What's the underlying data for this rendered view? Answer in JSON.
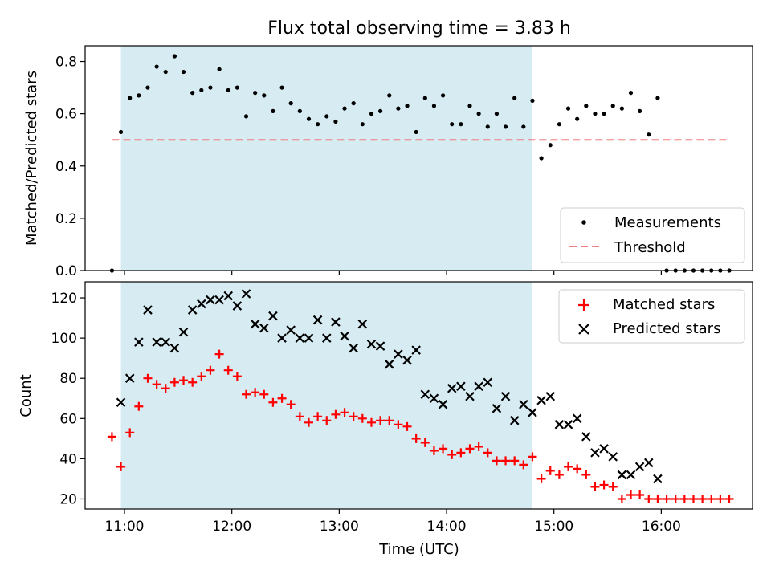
{
  "chart_data": [
    {
      "type": "scatter",
      "title": "Flux total observing time = 3.83 h",
      "xlabel": "",
      "ylabel": "Matched/Predicted stars",
      "ylim": [
        0,
        0.86
      ],
      "yticks": [
        0.0,
        0.2,
        0.4,
        0.6,
        0.8
      ],
      "ytick_labels": [
        "0.0",
        "0.2",
        "0.4",
        "0.6",
        "0.8"
      ],
      "shaded_interval": [
        "10:58",
        "14:48"
      ],
      "threshold": 0.5,
      "legend_position": "lower-right",
      "legend": [
        {
          "label": "Measurements",
          "color": "#000000",
          "marker": "dot"
        },
        {
          "label": "Threshold",
          "color": "#f08080",
          "marker": "dashed-line"
        }
      ],
      "series": [
        {
          "name": "Measurements",
          "color": "#000000",
          "x": [
            "10:53",
            "10:58",
            "11:03",
            "11:08",
            "11:13",
            "11:18",
            "11:23",
            "11:28",
            "11:33",
            "11:38",
            "11:43",
            "11:48",
            "11:53",
            "11:58",
            "12:03",
            "12:08",
            "12:13",
            "12:18",
            "12:23",
            "12:28",
            "12:33",
            "12:38",
            "12:43",
            "12:48",
            "12:53",
            "12:58",
            "13:03",
            "13:08",
            "13:13",
            "13:18",
            "13:23",
            "13:28",
            "13:33",
            "13:38",
            "13:43",
            "13:48",
            "13:53",
            "13:58",
            "14:03",
            "14:08",
            "14:13",
            "14:18",
            "14:23",
            "14:28",
            "14:33",
            "14:38",
            "14:43",
            "14:48",
            "14:53",
            "14:58",
            "15:03",
            "15:08",
            "15:13",
            "15:18",
            "15:23",
            "15:28",
            "15:33",
            "15:38",
            "15:43",
            "15:48",
            "15:53",
            "15:58",
            "16:03",
            "16:08",
            "16:13",
            "16:18",
            "16:23",
            "16:28",
            "16:33",
            "16:38"
          ],
          "y": [
            0.0,
            0.53,
            0.66,
            0.67,
            0.7,
            0.78,
            0.76,
            0.82,
            0.76,
            0.68,
            0.69,
            0.7,
            0.77,
            0.69,
            0.7,
            0.59,
            0.68,
            0.67,
            0.61,
            0.7,
            0.64,
            0.61,
            0.58,
            0.56,
            0.59,
            0.57,
            0.62,
            0.64,
            0.56,
            0.6,
            0.61,
            0.67,
            0.62,
            0.63,
            0.53,
            0.66,
            0.63,
            0.67,
            0.56,
            0.56,
            0.63,
            0.6,
            0.55,
            0.6,
            0.55,
            0.66,
            0.55,
            0.65,
            0.43,
            0.48,
            0.56,
            0.62,
            0.58,
            0.63,
            0.6,
            0.6,
            0.63,
            0.62,
            0.68,
            0.61,
            0.52,
            0.66,
            0.0,
            0.0,
            0.0,
            0.0,
            0.0,
            0.0,
            0.0,
            0.0
          ]
        },
        {
          "name": "Threshold",
          "color": "#f08080",
          "x": [
            "10:53",
            "16:38"
          ],
          "y": [
            0.5,
            0.5
          ]
        }
      ]
    },
    {
      "type": "scatter",
      "title": "",
      "xlabel": "Time (UTC)",
      "ylabel": "Count",
      "ylim": [
        15,
        128
      ],
      "yticks": [
        20,
        40,
        60,
        80,
        100,
        120
      ],
      "xlim": [
        "10:38",
        "16:51"
      ],
      "xticks": [
        "11:00",
        "12:00",
        "13:00",
        "14:00",
        "15:00",
        "16:00"
      ],
      "shaded_interval": [
        "10:58",
        "14:48"
      ],
      "legend_position": "upper-right",
      "legend": [
        {
          "label": "Matched stars",
          "color": "#ff0000",
          "marker": "plus"
        },
        {
          "label": "Predicted stars",
          "color": "#000000",
          "marker": "x"
        }
      ],
      "series": [
        {
          "name": "Matched stars",
          "color": "#ff0000",
          "x": [
            "10:53",
            "10:58",
            "11:03",
            "11:08",
            "11:13",
            "11:18",
            "11:23",
            "11:28",
            "11:33",
            "11:38",
            "11:43",
            "11:48",
            "11:53",
            "11:58",
            "12:03",
            "12:08",
            "12:13",
            "12:18",
            "12:23",
            "12:28",
            "12:33",
            "12:38",
            "12:43",
            "12:48",
            "12:53",
            "12:58",
            "13:03",
            "13:08",
            "13:13",
            "13:18",
            "13:23",
            "13:28",
            "13:33",
            "13:38",
            "13:43",
            "13:48",
            "13:53",
            "13:58",
            "14:03",
            "14:08",
            "14:13",
            "14:18",
            "14:23",
            "14:28",
            "14:33",
            "14:38",
            "14:43",
            "14:48",
            "14:53",
            "14:58",
            "15:03",
            "15:08",
            "15:13",
            "15:18",
            "15:23",
            "15:28",
            "15:33",
            "15:38",
            "15:43",
            "15:48",
            "15:53",
            "15:58",
            "16:03",
            "16:08",
            "16:13",
            "16:18",
            "16:23",
            "16:28",
            "16:33",
            "16:38"
          ],
          "y": [
            51,
            36,
            53,
            66,
            80,
            77,
            75,
            78,
            79,
            78,
            81,
            84,
            92,
            84,
            81,
            72,
            73,
            72,
            68,
            70,
            67,
            61,
            58,
            61,
            59,
            62,
            63,
            61,
            60,
            58,
            59,
            59,
            57,
            56,
            50,
            48,
            44,
            45,
            42,
            43,
            45,
            46,
            43,
            39,
            39,
            39,
            37,
            41,
            30,
            34,
            32,
            36,
            35,
            32,
            26,
            27,
            26,
            20,
            22,
            22,
            20,
            20,
            20,
            20,
            20,
            20,
            20,
            20,
            20,
            20
          ]
        },
        {
          "name": "Predicted stars",
          "color": "#000000",
          "x": [
            "10:58",
            "11:03",
            "11:08",
            "11:13",
            "11:18",
            "11:23",
            "11:28",
            "11:33",
            "11:38",
            "11:43",
            "11:48",
            "11:53",
            "11:58",
            "12:03",
            "12:08",
            "12:13",
            "12:18",
            "12:23",
            "12:28",
            "12:33",
            "12:38",
            "12:43",
            "12:48",
            "12:53",
            "12:58",
            "13:03",
            "13:08",
            "13:13",
            "13:18",
            "13:23",
            "13:28",
            "13:33",
            "13:38",
            "13:43",
            "13:48",
            "13:53",
            "13:58",
            "14:03",
            "14:08",
            "14:13",
            "14:18",
            "14:23",
            "14:28",
            "14:33",
            "14:38",
            "14:43",
            "14:48",
            "14:53",
            "14:58",
            "15:03",
            "15:08",
            "15:13",
            "15:18",
            "15:23",
            "15:28",
            "15:33",
            "15:38",
            "15:43",
            "15:48",
            "15:53",
            "15:58"
          ],
          "y": [
            68,
            80,
            98,
            114,
            98,
            98,
            95,
            103,
            114,
            117,
            119,
            119,
            121,
            116,
            122,
            107,
            105,
            111,
            100,
            104,
            100,
            100,
            109,
            100,
            108,
            101,
            95,
            107,
            97,
            96,
            87,
            92,
            89,
            94,
            72,
            70,
            67,
            75,
            76,
            71,
            76,
            78,
            65,
            71,
            59,
            67,
            63,
            69,
            71,
            57,
            57,
            60,
            51,
            43,
            45,
            41,
            32,
            32,
            36,
            38,
            30
          ]
        }
      ]
    }
  ]
}
